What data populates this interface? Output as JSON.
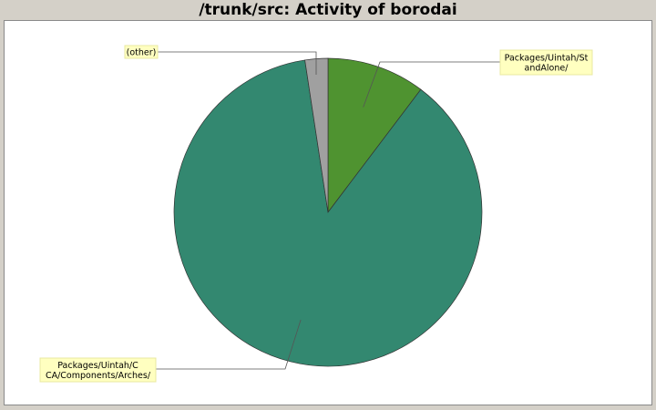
{
  "chart_data": {
    "type": "pie",
    "title": "/trunk/src: Activity of borodai",
    "slices": [
      {
        "label": "Packages/Uintah/StandAlone/",
        "label_lines": [
          "Packages/Uintah/St",
          "andAlone/"
        ],
        "value": 10.3,
        "color": "#4f9330"
      },
      {
        "label": "Packages/Uintah/CCA/Components/Arches/",
        "label_lines": [
          "Packages/Uintah/C",
          "CA/Components/Arches/"
        ],
        "value": 87.3,
        "color": "#338870"
      },
      {
        "label": "(other)",
        "label_lines": [
          "(other)"
        ],
        "value": 2.4,
        "color": "#a0a0a0"
      }
    ]
  }
}
